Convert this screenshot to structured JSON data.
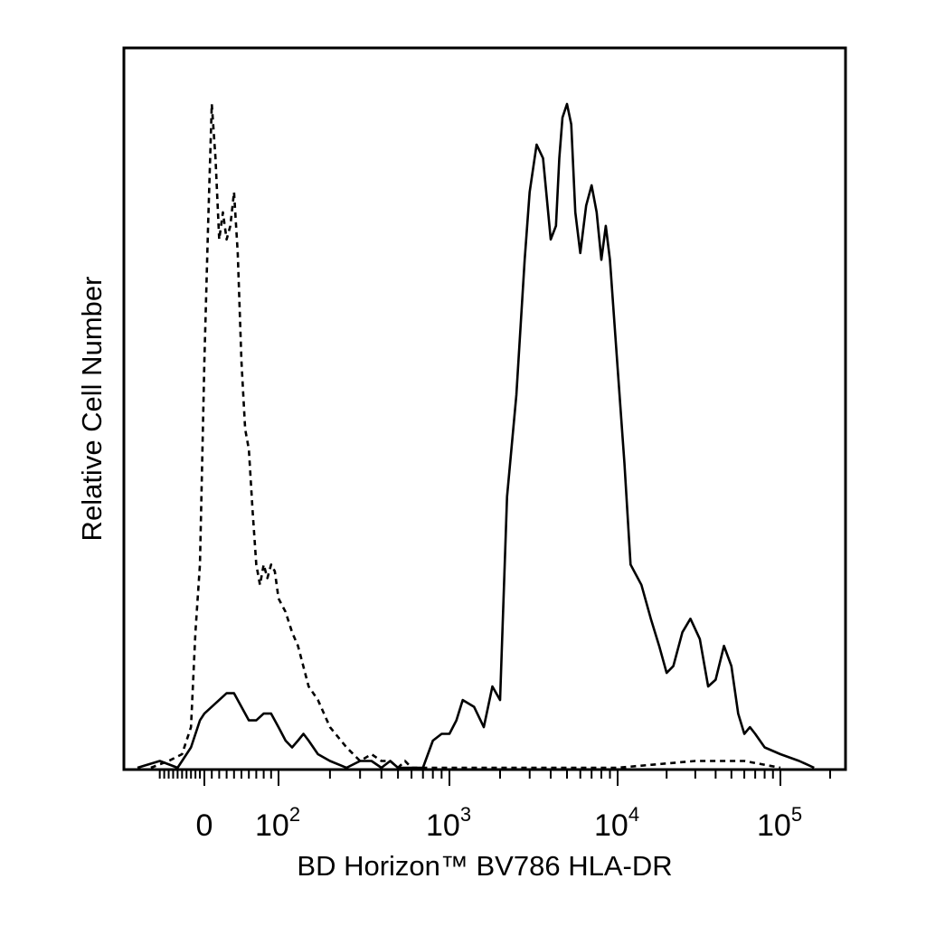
{
  "chart_data": {
    "type": "line",
    "title": "",
    "xlabel": "BD Horizon™ BV786 HLA-DR",
    "ylabel": "Relative Cell Number",
    "x_scale": "biexponential",
    "xlim": [
      -150,
      200000
    ],
    "ylim": [
      0,
      1
    ],
    "grid": false,
    "legend": "none",
    "x_ticks": [
      {
        "value": 0,
        "base": "0",
        "exp": ""
      },
      {
        "value": 100,
        "base": "10",
        "exp": "2"
      },
      {
        "value": 1000,
        "base": "10",
        "exp": "3"
      },
      {
        "value": 10000,
        "base": "10",
        "exp": "4"
      },
      {
        "value": 100000,
        "base": "10",
        "exp": "5"
      }
    ],
    "series": [
      {
        "style": "dashed",
        "x": [
          -120,
          -80,
          -50,
          -30,
          -20,
          -10,
          0,
          5,
          10,
          15,
          20,
          25,
          30,
          35,
          40,
          45,
          50,
          55,
          60,
          65,
          70,
          75,
          80,
          85,
          90,
          95,
          100,
          110,
          120,
          130,
          150,
          170,
          200,
          250,
          300,
          350,
          400,
          450,
          500,
          550,
          600,
          700,
          800,
          1000,
          10000,
          30000,
          60000,
          100000
        ],
        "values": [
          0.0,
          0.01,
          0.02,
          0.06,
          0.2,
          0.3,
          0.6,
          0.8,
          0.98,
          0.9,
          0.78,
          0.82,
          0.78,
          0.8,
          0.85,
          0.76,
          0.6,
          0.5,
          0.47,
          0.38,
          0.3,
          0.27,
          0.3,
          0.28,
          0.3,
          0.29,
          0.25,
          0.23,
          0.2,
          0.18,
          0.12,
          0.1,
          0.06,
          0.03,
          0.01,
          0.02,
          0.01,
          0.01,
          0.0,
          0.01,
          0.0,
          0.0,
          0.0,
          0.0,
          0.0,
          0.01,
          0.01,
          0.0
        ]
      },
      {
        "style": "solid",
        "x": [
          -150,
          -100,
          -60,
          -30,
          -10,
          0,
          10,
          20,
          30,
          40,
          50,
          60,
          70,
          80,
          90,
          100,
          110,
          120,
          130,
          140,
          150,
          170,
          200,
          250,
          300,
          350,
          400,
          450,
          500,
          600,
          700,
          800,
          900,
          1000,
          1100,
          1200,
          1400,
          1600,
          1800,
          2000,
          2200,
          2500,
          2800,
          3000,
          3300,
          3600,
          4000,
          4300,
          4500,
          4700,
          5000,
          5300,
          5600,
          6000,
          6500,
          7000,
          7500,
          8000,
          8500,
          9000,
          10000,
          11000,
          12000,
          14000,
          16000,
          18000,
          20000,
          22000,
          25000,
          28000,
          32000,
          36000,
          40000,
          45000,
          50000,
          55000,
          60000,
          65000,
          70000,
          80000,
          100000,
          130000,
          160000
        ],
        "values": [
          0.0,
          0.01,
          0.0,
          0.03,
          0.07,
          0.08,
          0.09,
          0.1,
          0.11,
          0.11,
          0.09,
          0.07,
          0.07,
          0.08,
          0.08,
          0.06,
          0.04,
          0.03,
          0.04,
          0.05,
          0.04,
          0.02,
          0.01,
          0.0,
          0.01,
          0.01,
          0.0,
          0.01,
          0.0,
          0.0,
          0.0,
          0.04,
          0.05,
          0.05,
          0.07,
          0.1,
          0.09,
          0.06,
          0.12,
          0.1,
          0.4,
          0.55,
          0.75,
          0.85,
          0.92,
          0.9,
          0.78,
          0.8,
          0.9,
          0.96,
          0.98,
          0.95,
          0.82,
          0.76,
          0.83,
          0.86,
          0.82,
          0.75,
          0.8,
          0.75,
          0.59,
          0.45,
          0.3,
          0.27,
          0.22,
          0.18,
          0.14,
          0.15,
          0.2,
          0.22,
          0.19,
          0.12,
          0.13,
          0.18,
          0.15,
          0.08,
          0.05,
          0.06,
          0.05,
          0.03,
          0.02,
          0.01,
          0.0
        ]
      }
    ]
  }
}
